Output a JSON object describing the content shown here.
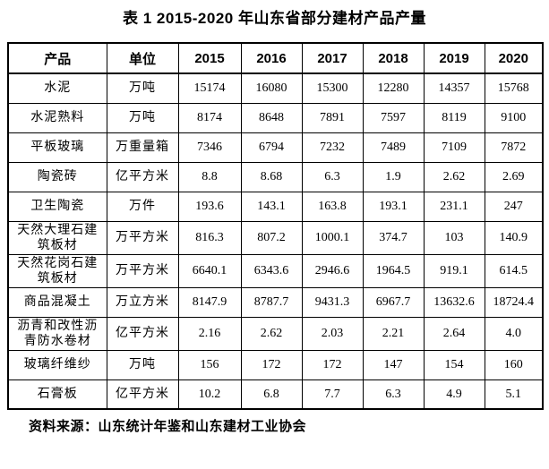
{
  "title": "表 1  2015-2020 年山东省部分建材产品产量",
  "source_note": "资料来源：山东统计年鉴和山东建材工业协会",
  "table": {
    "headers": [
      "产品",
      "单位",
      "2015",
      "2016",
      "2017",
      "2018",
      "2019",
      "2020"
    ],
    "rows": [
      {
        "product": "水泥",
        "unit": "万吨",
        "values": [
          "15174",
          "16080",
          "15300",
          "12280",
          "14357",
          "15768"
        ]
      },
      {
        "product": "水泥熟料",
        "unit": "万吨",
        "values": [
          "8174",
          "8648",
          "7891",
          "7597",
          "8119",
          "9100"
        ]
      },
      {
        "product": "平板玻璃",
        "unit": "万重量箱",
        "values": [
          "7346",
          "6794",
          "7232",
          "7489",
          "7109",
          "7872"
        ]
      },
      {
        "product": "陶瓷砖",
        "unit": "亿平方米",
        "values": [
          "8.8",
          "8.68",
          "6.3",
          "1.9",
          "2.62",
          "2.69"
        ]
      },
      {
        "product": "卫生陶瓷",
        "unit": "万件",
        "values": [
          "193.6",
          "143.1",
          "163.8",
          "193.1",
          "231.1",
          "247"
        ]
      },
      {
        "product": "天然大理石建筑板材",
        "unit": "万平方米",
        "values": [
          "816.3",
          "807.2",
          "1000.1",
          "374.7",
          "103",
          "140.9"
        ]
      },
      {
        "product": "天然花岗石建筑板材",
        "unit": "万平方米",
        "values": [
          "6640.1",
          "6343.6",
          "2946.6",
          "1964.5",
          "919.1",
          "614.5"
        ]
      },
      {
        "product": "商品混凝土",
        "unit": "万立方米",
        "values": [
          "8147.9",
          "8787.7",
          "9431.3",
          "6967.7",
          "13632.6",
          "18724.4"
        ]
      },
      {
        "product": "沥青和改性沥青防水卷材",
        "unit": "亿平方米",
        "values": [
          "2.16",
          "2.62",
          "2.03",
          "2.21",
          "2.64",
          "4.0"
        ]
      },
      {
        "product": "玻璃纤维纱",
        "unit": "万吨",
        "values": [
          "156",
          "172",
          "172",
          "147",
          "154",
          "160"
        ]
      },
      {
        "product": "石膏板",
        "unit": "亿平方米",
        "values": [
          "10.2",
          "6.8",
          "7.7",
          "6.3",
          "4.9",
          "5.1"
        ]
      }
    ]
  }
}
